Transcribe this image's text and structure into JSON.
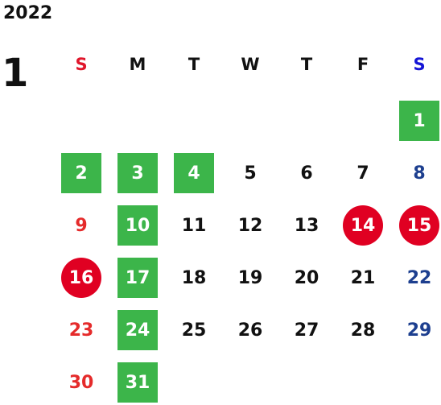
{
  "year": "2022",
  "month": "1",
  "weekdays": [
    "S",
    "M",
    "T",
    "W",
    "T",
    "F",
    "S"
  ],
  "days": [
    {
      "label": "1",
      "col": 6,
      "row": 0,
      "style": "green"
    },
    {
      "label": "2",
      "col": 0,
      "row": 1,
      "style": "green"
    },
    {
      "label": "3",
      "col": 1,
      "row": 1,
      "style": "green"
    },
    {
      "label": "4",
      "col": 2,
      "row": 1,
      "style": "green"
    },
    {
      "label": "5",
      "col": 3,
      "row": 1,
      "style": "weekday"
    },
    {
      "label": "6",
      "col": 4,
      "row": 1,
      "style": "weekday"
    },
    {
      "label": "7",
      "col": 5,
      "row": 1,
      "style": "weekday"
    },
    {
      "label": "8",
      "col": 6,
      "row": 1,
      "style": "saturday"
    },
    {
      "label": "9",
      "col": 0,
      "row": 2,
      "style": "sunday"
    },
    {
      "label": "10",
      "col": 1,
      "row": 2,
      "style": "green"
    },
    {
      "label": "11",
      "col": 2,
      "row": 2,
      "style": "weekday"
    },
    {
      "label": "12",
      "col": 3,
      "row": 2,
      "style": "weekday"
    },
    {
      "label": "13",
      "col": 4,
      "row": 2,
      "style": "weekday"
    },
    {
      "label": "14",
      "col": 5,
      "row": 2,
      "style": "red"
    },
    {
      "label": "15",
      "col": 6,
      "row": 2,
      "style": "red"
    },
    {
      "label": "16",
      "col": 0,
      "row": 3,
      "style": "red"
    },
    {
      "label": "17",
      "col": 1,
      "row": 3,
      "style": "green"
    },
    {
      "label": "18",
      "col": 2,
      "row": 3,
      "style": "weekday"
    },
    {
      "label": "19",
      "col": 3,
      "row": 3,
      "style": "weekday"
    },
    {
      "label": "20",
      "col": 4,
      "row": 3,
      "style": "weekday"
    },
    {
      "label": "21",
      "col": 5,
      "row": 3,
      "style": "weekday"
    },
    {
      "label": "22",
      "col": 6,
      "row": 3,
      "style": "saturday"
    },
    {
      "label": "23",
      "col": 0,
      "row": 4,
      "style": "sunday"
    },
    {
      "label": "24",
      "col": 1,
      "row": 4,
      "style": "green"
    },
    {
      "label": "25",
      "col": 2,
      "row": 4,
      "style": "weekday"
    },
    {
      "label": "26",
      "col": 3,
      "row": 4,
      "style": "weekday"
    },
    {
      "label": "27",
      "col": 4,
      "row": 4,
      "style": "weekday"
    },
    {
      "label": "28",
      "col": 5,
      "row": 4,
      "style": "weekday"
    },
    {
      "label": "29",
      "col": 6,
      "row": 4,
      "style": "saturday"
    },
    {
      "label": "30",
      "col": 0,
      "row": 5,
      "style": "sunday"
    },
    {
      "label": "31",
      "col": 1,
      "row": 5,
      "style": "green"
    }
  ]
}
